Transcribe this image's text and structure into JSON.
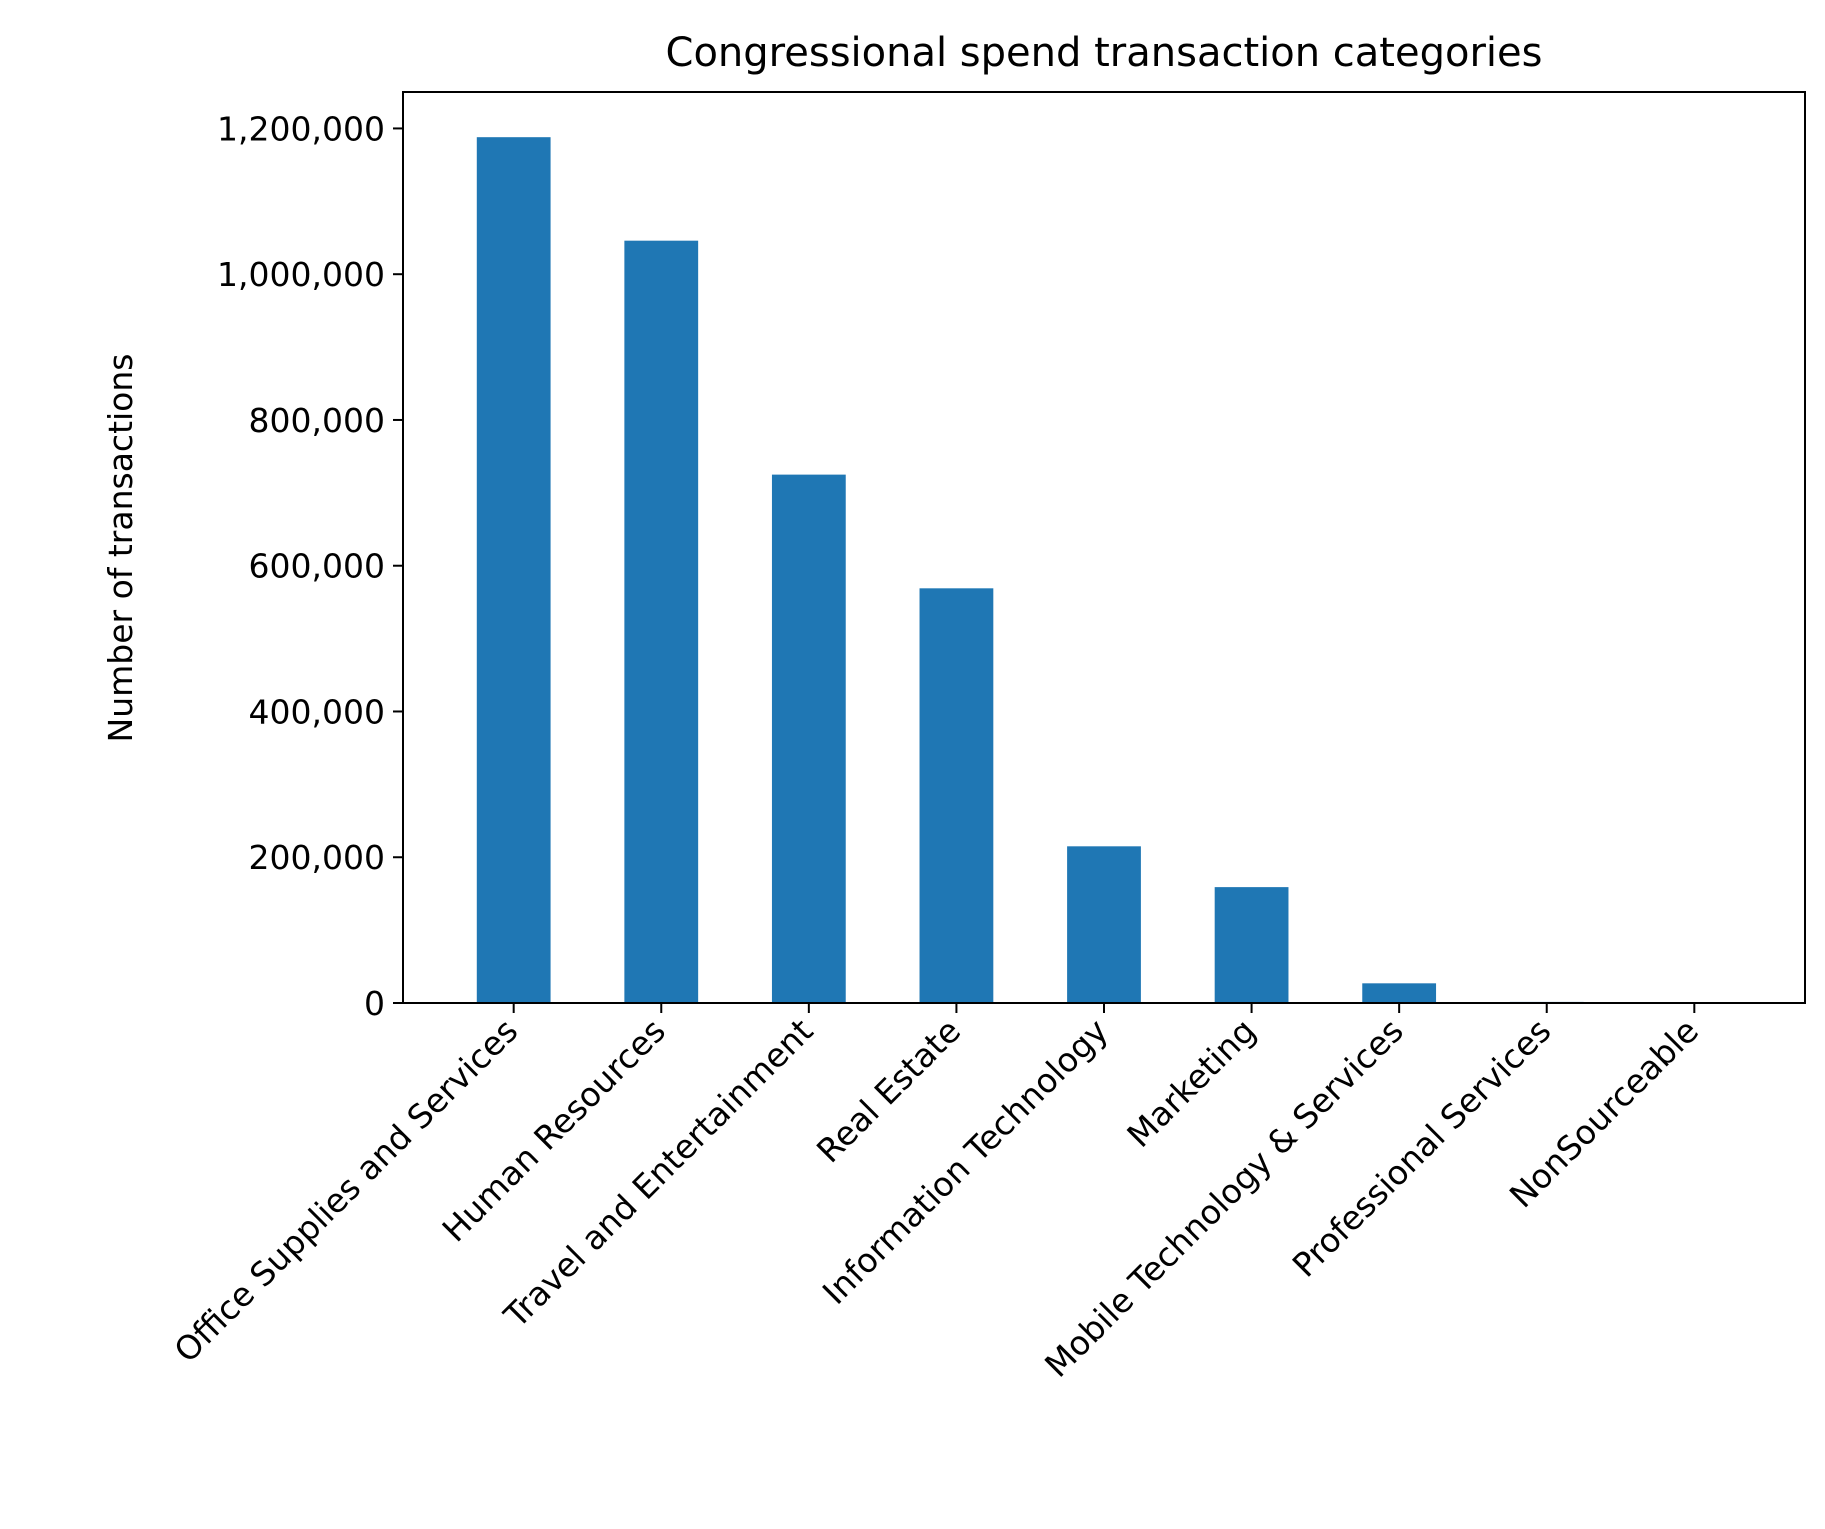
{
  "chart_data": {
    "type": "bar",
    "title": "Congressional spend transaction categories",
    "xlabel": "",
    "ylabel": "Number of transactions",
    "categories": [
      "Office Supplies and Services",
      "Human Resources",
      "Travel and Entertainment",
      "Real Estate",
      "Information Technology",
      "Marketing",
      "Mobile Technology & Services",
      "Professional Services",
      "NonSourceable"
    ],
    "values": [
      1188000,
      1046000,
      725000,
      569000,
      215000,
      159000,
      27000,
      1500,
      500
    ],
    "ylim": [
      0,
      1250000
    ],
    "yticks": [
      0,
      200000,
      400000,
      600000,
      800000,
      1000000,
      1200000
    ],
    "ytick_labels": [
      "0",
      "200,000",
      "400,000",
      "600,000",
      "800,000",
      "1,000,000",
      "1,200,000"
    ],
    "bar_color": "#1f77b4",
    "grid": false,
    "legend": "none"
  }
}
